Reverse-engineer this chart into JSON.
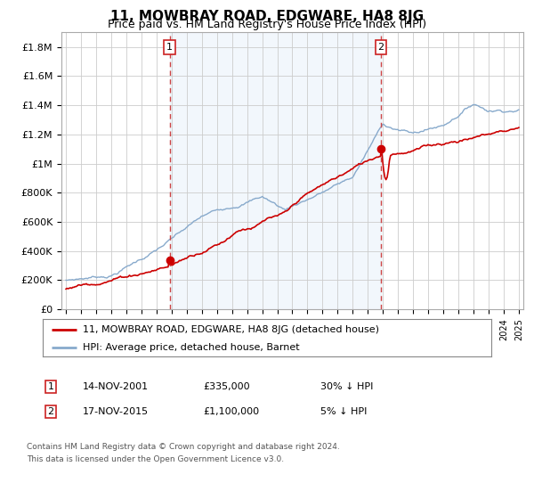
{
  "title": "11, MOWBRAY ROAD, EDGWARE, HA8 8JG",
  "subtitle": "Price paid vs. HM Land Registry's House Price Index (HPI)",
  "title_fontsize": 11,
  "subtitle_fontsize": 9,
  "yticks": [
    0,
    200000,
    400000,
    600000,
    800000,
    1000000,
    1200000,
    1400000,
    1600000,
    1800000
  ],
  "ytick_labels": [
    "£0",
    "£200K",
    "£400K",
    "£600K",
    "£800K",
    "£1M",
    "£1.2M",
    "£1.4M",
    "£1.6M",
    "£1.8M"
  ],
  "ylim": [
    0,
    1900000
  ],
  "xlim_start": 1994.7,
  "xlim_end": 2025.3,
  "background_color": "#ffffff",
  "grid_color": "#cccccc",
  "fill_color": "#ddeeff",
  "transaction1": {
    "year": 2001.87,
    "price": 335000,
    "label": "1",
    "date": "14-NOV-2001",
    "price_str": "£335,000",
    "note": "30% ↓ HPI"
  },
  "transaction2": {
    "year": 2015.87,
    "price": 1100000,
    "label": "2",
    "date": "17-NOV-2015",
    "price_str": "£1,100,000",
    "note": "5% ↓ HPI"
  },
  "legend_line1": "11, MOWBRAY ROAD, EDGWARE, HA8 8JG (detached house)",
  "legend_line2": "HPI: Average price, detached house, Barnet",
  "footer1": "Contains HM Land Registry data © Crown copyright and database right 2024.",
  "footer2": "This data is licensed under the Open Government Licence v3.0.",
  "red_color": "#cc0000",
  "blue_color": "#88aacc",
  "vline_color": "#cc4444",
  "marker_box_color": "#cc2222",
  "dot_color": "#cc0000"
}
